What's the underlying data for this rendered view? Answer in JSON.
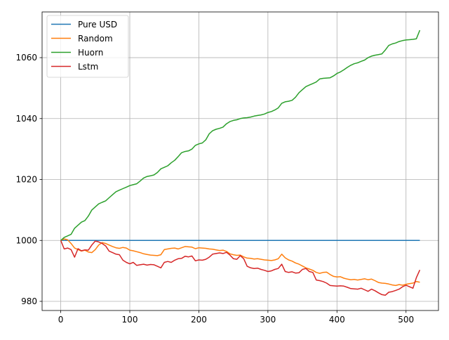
{
  "chart_data": {
    "type": "line",
    "title": "",
    "xlabel": "",
    "ylabel": "",
    "xlim": [
      -27,
      547
    ],
    "ylim": [
      977,
      1075
    ],
    "xticks": [
      0,
      100,
      200,
      300,
      400,
      500
    ],
    "yticks": [
      980,
      1000,
      1020,
      1040,
      1060
    ],
    "grid": true,
    "legend_position": "upper-left",
    "series": [
      {
        "name": "Pure USD",
        "color": "#1f77b4",
        "x": [
          0,
          520
        ],
        "y": [
          1000,
          1000
        ]
      },
      {
        "name": "Random",
        "color": "#ff7f0e",
        "x": [
          0,
          5,
          10,
          15,
          20,
          25,
          30,
          35,
          40,
          45,
          50,
          55,
          60,
          65,
          70,
          75,
          80,
          85,
          90,
          95,
          100,
          105,
          110,
          115,
          120,
          125,
          130,
          135,
          140,
          145,
          150,
          155,
          160,
          165,
          170,
          175,
          180,
          185,
          190,
          195,
          200,
          205,
          210,
          215,
          220,
          225,
          230,
          235,
          240,
          245,
          250,
          255,
          260,
          265,
          270,
          275,
          280,
          285,
          290,
          295,
          300,
          305,
          310,
          315,
          320,
          325,
          330,
          335,
          340,
          345,
          350,
          355,
          360,
          365,
          370,
          375,
          380,
          385,
          390,
          395,
          400,
          405,
          410,
          415,
          420,
          425,
          430,
          435,
          440,
          445,
          450,
          455,
          460,
          465,
          470,
          475,
          480,
          485,
          490,
          495,
          500,
          505,
          510,
          515,
          520
        ],
        "y": [
          1000,
          1000.5,
          1000.2,
          999,
          997.5,
          997,
          996.5,
          996.8,
          996.2,
          996,
          997,
          998.5,
          999.3,
          999,
          998.5,
          998,
          997.6,
          997.4,
          997.7,
          997.5,
          996.8,
          996.6,
          996.3,
          996.0,
          995.6,
          995.4,
          995.2,
          995.1,
          995.0,
          995.3,
          997,
          997.2,
          997.4,
          997.5,
          997.2,
          997.6,
          998.0,
          997.9,
          997.8,
          997.3,
          997.6,
          997.5,
          997.4,
          997.2,
          997.1,
          996.9,
          996.7,
          996.8,
          996.4,
          995.6,
          995.3,
          995.1,
          995.2,
          994.6,
          994.2,
          994.1,
          993.9,
          994.0,
          993.8,
          993.6,
          993.5,
          993.4,
          993.6,
          994.0,
          995.5,
          994.3,
          993.6,
          993.2,
          992.6,
          992.2,
          991.6,
          991.0,
          990.6,
          990.2,
          989.5,
          989.2,
          989.5,
          989.6,
          988.8,
          988.2,
          988.0,
          988.1,
          987.6,
          987.3,
          987.1,
          987.2,
          987.0,
          987.2,
          987.4,
          987.1,
          987.3,
          986.8,
          986.2,
          986.0,
          985.9,
          985.7,
          985.4,
          985.2,
          985.5,
          985.3,
          985.6,
          985.8,
          986.0,
          986.5,
          986.3
        ]
      },
      {
        "name": "Huorn",
        "color": "#2ca02c",
        "x": [
          0,
          5,
          10,
          15,
          20,
          25,
          30,
          35,
          40,
          45,
          50,
          55,
          60,
          65,
          70,
          75,
          80,
          85,
          90,
          95,
          100,
          105,
          110,
          115,
          120,
          125,
          130,
          135,
          140,
          145,
          150,
          155,
          160,
          165,
          170,
          175,
          180,
          185,
          190,
          195,
          200,
          205,
          210,
          215,
          220,
          225,
          230,
          235,
          240,
          245,
          250,
          255,
          260,
          265,
          270,
          275,
          280,
          285,
          290,
          295,
          300,
          305,
          310,
          315,
          320,
          325,
          330,
          335,
          340,
          345,
          350,
          355,
          360,
          365,
          370,
          375,
          380,
          385,
          390,
          395,
          400,
          405,
          410,
          415,
          420,
          425,
          430,
          435,
          440,
          445,
          450,
          455,
          460,
          465,
          470,
          475,
          480,
          485,
          490,
          495,
          500,
          505,
          510,
          515,
          520
        ],
        "y": [
          1000,
          1001,
          1001.5,
          1002,
          1004,
          1005,
          1006,
          1006.5,
          1008,
          1010,
          1011,
          1012,
          1012.5,
          1013,
          1014,
          1015,
          1016,
          1016.5,
          1017,
          1017.5,
          1018,
          1018.3,
          1018.6,
          1019.5,
          1020.5,
          1021,
          1021.2,
          1021.5,
          1022.3,
          1023.5,
          1024,
          1024.5,
          1025.5,
          1026.3,
          1027.5,
          1028.8,
          1029.2,
          1029.4,
          1030,
          1031.2,
          1031.7,
          1032.0,
          1033.0,
          1035.0,
          1036.0,
          1036.5,
          1036.8,
          1037.2,
          1038.3,
          1039.0,
          1039.4,
          1039.6,
          1040.0,
          1040.2,
          1040.3,
          1040.5,
          1040.8,
          1041.0,
          1041.2,
          1041.5,
          1042.0,
          1042.3,
          1042.8,
          1043.5,
          1045.0,
          1045.5,
          1045.7,
          1046.0,
          1047.0,
          1048.5,
          1049.5,
          1050.5,
          1051.0,
          1051.5,
          1052.0,
          1053.0,
          1053.2,
          1053.3,
          1053.4,
          1054.0,
          1054.8,
          1055.3,
          1056.0,
          1056.8,
          1057.5,
          1058.0,
          1058.3,
          1058.8,
          1059.2,
          1060.0,
          1060.5,
          1060.8,
          1061.0,
          1061.2,
          1062.5,
          1064.0,
          1064.5,
          1064.8,
          1065.3,
          1065.6,
          1065.8,
          1065.9,
          1066.0,
          1066.2,
          1069.0
        ]
      },
      {
        "name": "Lstm",
        "color": "#d62728",
        "x": [
          0,
          5,
          10,
          15,
          20,
          25,
          30,
          35,
          40,
          45,
          50,
          55,
          60,
          65,
          70,
          75,
          80,
          85,
          90,
          95,
          100,
          105,
          110,
          115,
          120,
          125,
          130,
          135,
          140,
          145,
          150,
          155,
          160,
          165,
          170,
          175,
          180,
          185,
          190,
          195,
          200,
          205,
          210,
          215,
          220,
          225,
          230,
          235,
          240,
          245,
          250,
          255,
          260,
          265,
          270,
          275,
          280,
          285,
          290,
          295,
          300,
          305,
          310,
          315,
          320,
          325,
          330,
          335,
          340,
          345,
          350,
          355,
          360,
          365,
          370,
          375,
          380,
          385,
          390,
          395,
          400,
          405,
          410,
          415,
          420,
          425,
          430,
          435,
          440,
          445,
          450,
          455,
          460,
          465,
          470,
          475,
          480,
          485,
          490,
          495,
          500,
          505,
          510,
          515,
          520
        ],
        "y": [
          1000,
          997.2,
          997.5,
          997.0,
          994.5,
          997.3,
          996.6,
          996.9,
          996.8,
          998.5,
          999.8,
          999.5,
          999.0,
          998.2,
          996.5,
          996.0,
          995.5,
          995.3,
          993.5,
          992.8,
          992.3,
          992.8,
          991.8,
          992.0,
          992.2,
          991.9,
          992.1,
          992.0,
          991.5,
          991.0,
          992.8,
          993.1,
          992.8,
          993.5,
          994.0,
          994.1,
          994.8,
          994.6,
          994.9,
          993.3,
          993.6,
          993.5,
          993.8,
          994.5,
          995.5,
          995.7,
          995.9,
          995.7,
          996.1,
          995.2,
          994.0,
          993.8,
          995.0,
          994.0,
          991.5,
          991.0,
          990.8,
          990.9,
          990.5,
          990.2,
          989.8,
          990.0,
          990.5,
          990.8,
          992.2,
          989.8,
          989.5,
          989.7,
          989.3,
          989.4,
          990.5,
          990.8,
          989.8,
          989.5,
          987.0,
          986.8,
          986.5,
          986.0,
          985.2,
          985.1,
          985.0,
          985.1,
          985.0,
          984.6,
          984.2,
          984.1,
          984.0,
          984.3,
          983.8,
          983.3,
          984.0,
          983.5,
          982.8,
          982.2,
          982.0,
          983.0,
          983.2,
          983.6,
          984.0,
          984.8,
          985.3,
          984.8,
          984.3,
          987.8,
          990.3
        ]
      }
    ]
  }
}
